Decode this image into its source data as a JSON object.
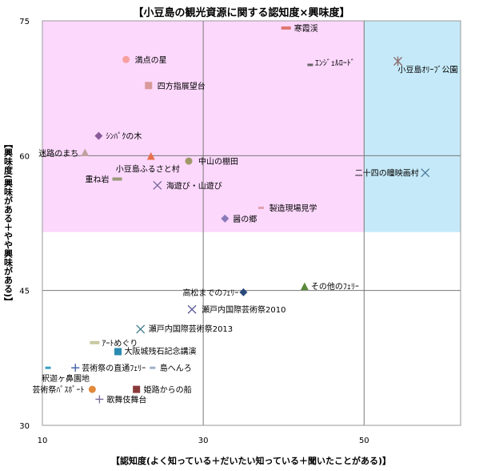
{
  "chart_data": {
    "type": "scatter",
    "title": "【小豆島の観光資源に関する認知度×興味度】",
    "xlabel": "【認知度(よく知っている＋だいたい知っている＋聞いたことがある)】",
    "ylabel": "【興味度(興味がある＋やや興味がある)】",
    "xlim": [
      10,
      62
    ],
    "ylim": [
      30,
      75
    ],
    "xticks": [
      10,
      30,
      50
    ],
    "yticks": [
      30,
      45,
      60,
      75
    ],
    "grid": true,
    "legend": "none",
    "regions": [
      {
        "x": [
          10,
          50
        ],
        "y": [
          51.5,
          75
        ],
        "color": "#fcd8fc"
      },
      {
        "x": [
          50,
          62
        ],
        "y": [
          51.5,
          75
        ],
        "color": "#c5e9f8"
      }
    ],
    "points": [
      {
        "label": "寒霞渓",
        "x": 40.3,
        "y": 74.2,
        "marker": "bar",
        "color": "#e07872"
      },
      {
        "label": "満点の星",
        "x": 20.4,
        "y": 70.7,
        "marker": "circle",
        "color": "#f7a0a0"
      },
      {
        "label": "ｴﾝｼﾞｪﾙﾛｰﾄﾞ",
        "x": 43.3,
        "y": 70.1,
        "marker": "dash",
        "color": "#666666"
      },
      {
        "label": "小豆島ｵﾘｰﾌﾞ公園",
        "x": 54.2,
        "y": 70.5,
        "marker": "asterisk",
        "color": "#8a6a6a"
      },
      {
        "label": "四方指展望台",
        "x": 23.2,
        "y": 67.8,
        "marker": "square",
        "color": "#d89a9a"
      },
      {
        "label": "ｼﾝﾊﾟｸの木",
        "x": 17.0,
        "y": 62.2,
        "marker": "diamond",
        "color": "#8a5a9a"
      },
      {
        "label": "迷路のまち",
        "x": 15.3,
        "y": 60.3,
        "marker": "triangle",
        "color": "#c0a0a0"
      },
      {
        "label": "小豆島ふるさと村",
        "x": 23.5,
        "y": 59.9,
        "marker": "triangle",
        "color": "#e8704a"
      },
      {
        "label": "中山の棚田",
        "x": 28.2,
        "y": 59.4,
        "marker": "circle",
        "color": "#a09868"
      },
      {
        "label": "二十四の瞳映画村",
        "x": 57.6,
        "y": 58.1,
        "marker": "x",
        "color": "#4a7a9a"
      },
      {
        "label": "重ね岩",
        "x": 19.3,
        "y": 57.4,
        "marker": "bar",
        "color": "#9a9a7a"
      },
      {
        "label": "海遊び・山遊び",
        "x": 24.3,
        "y": 56.7,
        "marker": "x",
        "color": "#7a6aa0"
      },
      {
        "label": "製造現場見学",
        "x": 37.2,
        "y": 54.2,
        "marker": "dash",
        "color": "#e0a0b0"
      },
      {
        "label": "醤の郷",
        "x": 32.7,
        "y": 53.0,
        "marker": "diamond",
        "color": "#8a7ab8"
      },
      {
        "label": "その他のﾌｪﾘｰ",
        "x": 42.6,
        "y": 45.4,
        "marker": "triangle",
        "color": "#5a8a3a"
      },
      {
        "label": "高松までのﾌｪﾘｰ",
        "x": 35.0,
        "y": 44.8,
        "marker": "diamond",
        "color": "#2a4a7a"
      },
      {
        "label": "瀬戸内国際芸術祭2010",
        "x": 28.6,
        "y": 42.9,
        "marker": "x",
        "color": "#5a5a9a"
      },
      {
        "label": "瀬戸内国際芸術祭2013",
        "x": 22.2,
        "y": 40.7,
        "marker": "x",
        "color": "#3a7a8a"
      },
      {
        "label": "ｱｰﾄめぐり",
        "x": 16.5,
        "y": 39.2,
        "marker": "bar",
        "color": "#c8c8a0"
      },
      {
        "label": "大阪城残石記念講演",
        "x": 19.4,
        "y": 38.2,
        "marker": "square",
        "color": "#2a8ab0"
      },
      {
        "label": "芸術祭の直通ﾌｪﾘｰ",
        "x": 14.1,
        "y": 36.4,
        "marker": "plus",
        "color": "#3a5aa0"
      },
      {
        "label": "島へんろ",
        "x": 23.7,
        "y": 36.4,
        "marker": "dash",
        "color": "#a0b0c8"
      },
      {
        "label": "釈迦ヶ鼻園地",
        "x": 10.7,
        "y": 36.4,
        "marker": "dash",
        "color": "#3aa0c0"
      },
      {
        "label": "芸術祭ﾊﾟｽﾎﾟｰﾄ",
        "x": 16.2,
        "y": 34.0,
        "marker": "circle",
        "color": "#e08a3a"
      },
      {
        "label": "姫路からの船",
        "x": 21.7,
        "y": 34.0,
        "marker": "square",
        "color": "#8a3a3a"
      },
      {
        "label": "歌舞伎舞台",
        "x": 17.1,
        "y": 32.9,
        "marker": "plus",
        "color": "#7a6a9a"
      }
    ]
  }
}
